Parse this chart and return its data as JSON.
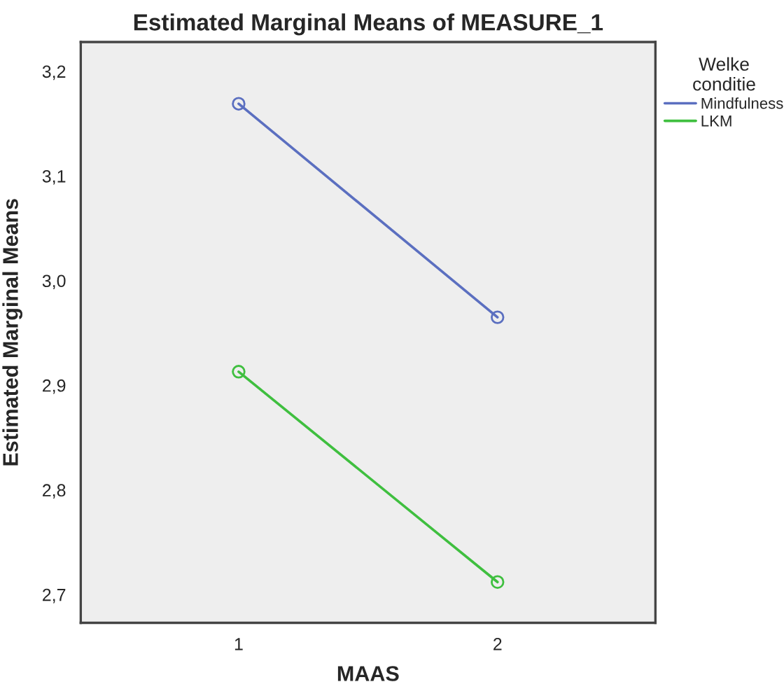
{
  "chart_data": {
    "type": "line",
    "title": "Estimated Marginal Means of MEASURE_1",
    "xlabel": "MAAS",
    "ylabel": "Estimated Marginal Means",
    "legend_title": "Welke\nconditie",
    "x": [
      1,
      2
    ],
    "series": [
      {
        "name": "Mindfulness",
        "color": "#5b6fc0",
        "values": [
          3.169,
          2.965
        ]
      },
      {
        "name": "LKM",
        "color": "#3fbf3f",
        "values": [
          2.913,
          2.712
        ]
      }
    ],
    "xlim": [
      0.39,
      2.61
    ],
    "xticks": [
      1,
      2
    ],
    "ylim": [
      2.673,
      3.228
    ],
    "yticks": [
      {
        "value": 2.7,
        "label": "2,7"
      },
      {
        "value": 2.8,
        "label": "2,8"
      },
      {
        "value": 2.9,
        "label": "2,9"
      },
      {
        "value": 3.0,
        "label": "3,0"
      },
      {
        "value": 3.1,
        "label": "3,1"
      },
      {
        "value": 3.2,
        "label": "3,2"
      }
    ],
    "marker": "circle",
    "line_style": "solid",
    "legend": "top right",
    "grid": false
  }
}
